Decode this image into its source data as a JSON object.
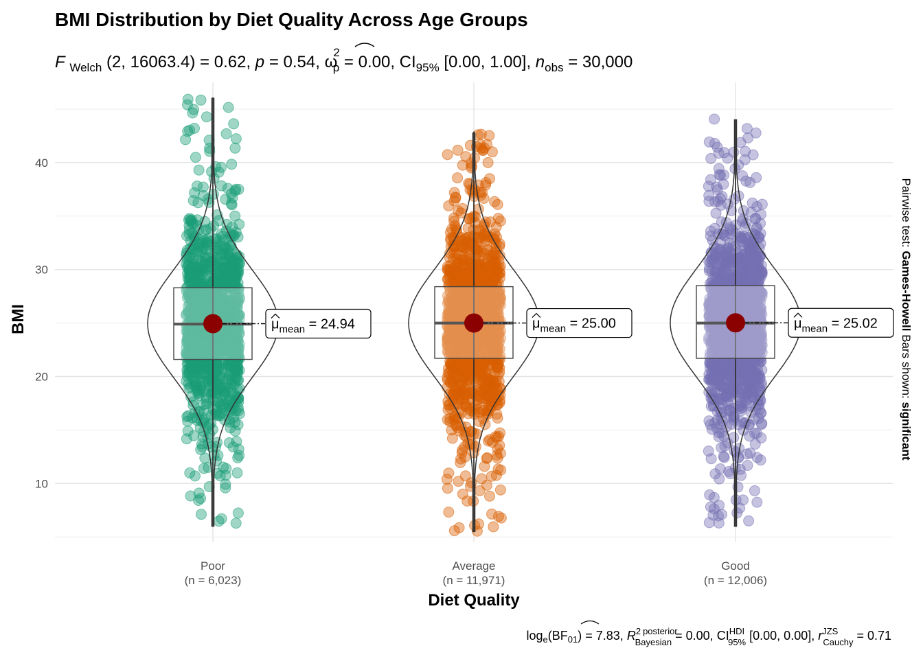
{
  "chart_data": {
    "type": "violin-box-scatter",
    "title": "BMI Distribution by Diet Quality Across Age Groups",
    "subtitle": {
      "stat_symbol": "F",
      "stat_sub": "Welch",
      "dfs": "(2, 16063.4)",
      "stat_value": "= 0.62",
      "p_label": "p",
      "p_value": "= 0.54,",
      "effect_symbol": "ω",
      "effect_sup": "2",
      "effect_sub": "p",
      "effect_value": "= 0.00,",
      "ci_label": "CI",
      "ci_sub": "95%",
      "ci_value": "[0.00, 1.00],",
      "n_label": "n",
      "n_sub": "obs",
      "n_value": "= 30,000"
    },
    "xlabel": "Diet Quality",
    "ylabel": "BMI",
    "ylim": [
      4.5,
      47.5
    ],
    "yticks": [
      10,
      20,
      30,
      40
    ],
    "categories": [
      {
        "name": "Poor",
        "n_label": "(n = 6,023)",
        "color": "#1b9e77",
        "mean": 24.94,
        "mean_label": "24.94",
        "q1": 21.6,
        "median": 24.9,
        "q3": 28.3,
        "whisker_low": 6.0,
        "whisker_high": 46.1,
        "min": 5.9,
        "max": 46.1
      },
      {
        "name": "Average",
        "n_label": "(n = 11,971)",
        "color": "#d95f02",
        "mean": 25.0,
        "mean_label": "25.00",
        "q1": 21.7,
        "median": 25.0,
        "q3": 28.4,
        "whisker_low": 5.5,
        "whisker_high": 42.9,
        "min": 5.5,
        "max": 42.9
      },
      {
        "name": "Good",
        "n_label": "(n = 12,006)",
        "color": "#7570b3",
        "mean": 25.02,
        "mean_label": "25.02",
        "q1": 21.7,
        "median": 25.0,
        "q3": 28.5,
        "whisker_low": 6.0,
        "whisker_high": 44.0,
        "min": 6.0,
        "max": 44.1
      }
    ],
    "mean_symbol": "μ",
    "mean_sub": "mean",
    "mean_eq": "=",
    "side_label": {
      "prefix": "Pairwise test:",
      "test": "Games-Howell",
      "middle": "Bars shown:",
      "shown": "significant"
    },
    "caption": {
      "log_label": "log",
      "log_sub": "e",
      "bf_open": "(BF",
      "bf_sub": "01",
      "bf_close": ")",
      "bf_value": "= 7.83,",
      "r_label": "R",
      "r_sup": "2",
      "posterior": "posterior",
      "bayesian": "Bayesian",
      "r_value": "= 0.00,",
      "ci_label": "CI",
      "ci_sup": "HDI",
      "ci_sub": "95%",
      "ci_value": "[0.00, 0.00],",
      "rc_label": "r",
      "rc_sup": "JZS",
      "rc_sub": "Cauchy",
      "rc_value": "= 0.71"
    }
  }
}
